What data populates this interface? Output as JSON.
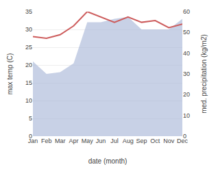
{
  "chart_data": {
    "type": "line",
    "xlabel": "date (month)",
    "ylabel": "max temp (C)",
    "y2label": "med. precipitation (kg/m2)",
    "categories": [
      "Jan",
      "Feb",
      "Mar",
      "Apr",
      "May",
      "Jun",
      "Jul",
      "Aug",
      "Sep",
      "Oct",
      "Nov",
      "Dec"
    ],
    "series": [
      {
        "type": "area",
        "color": "#aab8d8",
        "values": [
          21.0,
          17.5,
          18.0,
          20.5,
          32.0,
          32.0,
          33.0,
          33.5,
          30.0,
          30.0,
          30.0,
          33.0
        ]
      },
      {
        "type": "line",
        "color": "#cd5c5c",
        "values": [
          28.0,
          27.5,
          28.5,
          31.0,
          35.0,
          33.5,
          32.0,
          33.5,
          32.0,
          32.5,
          30.5,
          31.5
        ]
      }
    ],
    "ylim": [
      0,
      35
    ],
    "yticks": [
      0,
      5,
      10,
      15,
      20,
      25,
      30,
      35
    ],
    "y2lim": [
      0,
      60
    ],
    "y2ticks": [
      0,
      10,
      20,
      30,
      40,
      50,
      60
    ],
    "grid": true
  }
}
